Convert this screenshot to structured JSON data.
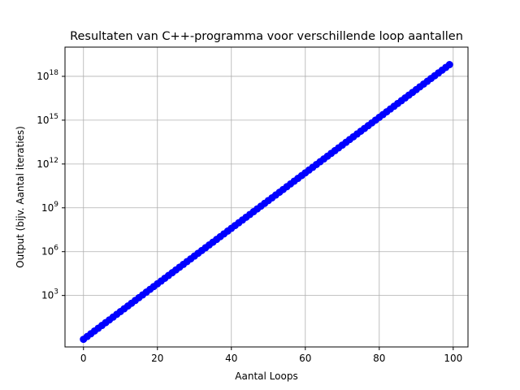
{
  "chart_data": {
    "type": "line",
    "title": "Resultaten van C++-programma voor verschillende loop aantallen",
    "xlabel": "Aantal Loops",
    "ylabel": "Output (bijv. Aantal iteraties)",
    "xlim": [
      -5,
      104
    ],
    "ylim": [
      0.3,
      1e+20
    ],
    "yscale": "log",
    "grid": true,
    "x_ticks": [
      0,
      20,
      40,
      60,
      80,
      100
    ],
    "y_ticks": [
      {
        "base": "10",
        "exp": "3",
        "value": 1000
      },
      {
        "base": "10",
        "exp": "6",
        "value": 1000000
      },
      {
        "base": "10",
        "exp": "9",
        "value": 1000000000
      },
      {
        "base": "10",
        "exp": "12",
        "value": 1000000000000
      },
      {
        "base": "10",
        "exp": "15",
        "value": 1000000000000000
      },
      {
        "base": "10",
        "exp": "18",
        "value": 1000000000000000000
      }
    ],
    "series": [
      {
        "color": "#0000ff",
        "marker": "circle",
        "x_start": 0,
        "x_end": 99,
        "x_step": 1,
        "y_at_x0": 1,
        "y_at_x99": 6.338e+18
      }
    ]
  }
}
